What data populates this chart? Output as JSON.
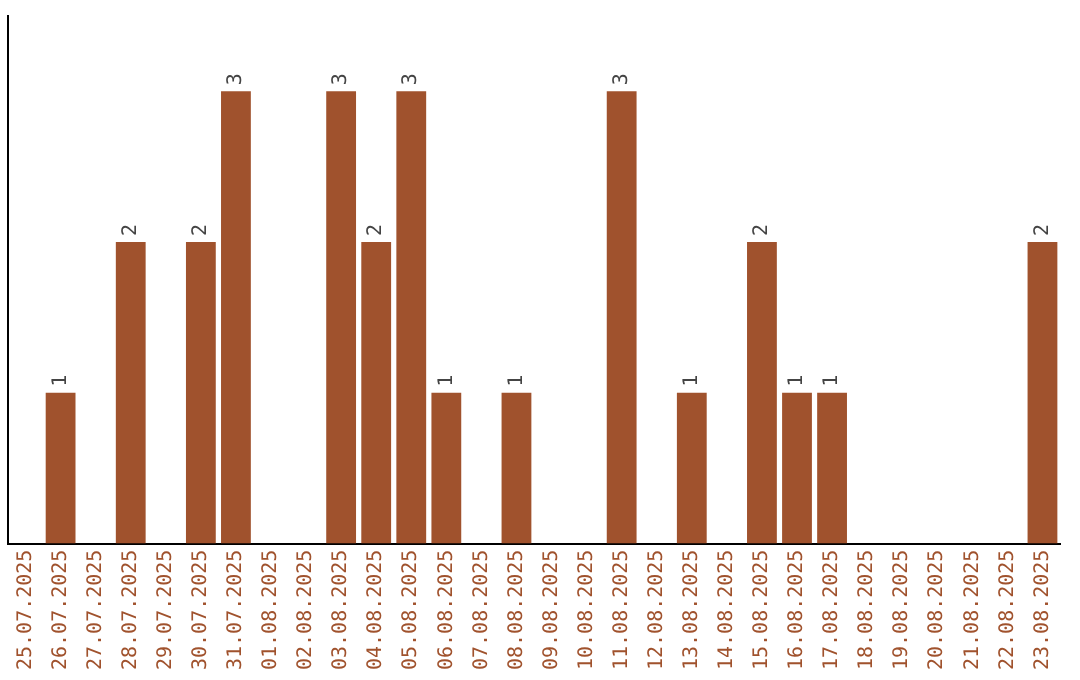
{
  "chart_data": {
    "type": "bar",
    "categories": [
      "25.07.2025",
      "26.07.2025",
      "27.07.2025",
      "28.07.2025",
      "29.07.2025",
      "30.07.2025",
      "31.07.2025",
      "01.08.2025",
      "02.08.2025",
      "03.08.2025",
      "04.08.2025",
      "05.08.2025",
      "06.08.2025",
      "07.08.2025",
      "08.08.2025",
      "09.08.2025",
      "10.08.2025",
      "11.08.2025",
      "12.08.2025",
      "13.08.2025",
      "14.08.2025",
      "15.08.2025",
      "16.08.2025",
      "17.08.2025",
      "18.08.2025",
      "19.08.2025",
      "20.08.2025",
      "21.08.2025",
      "22.08.2025",
      "23.08.2025"
    ],
    "values": [
      0,
      1,
      0,
      2,
      0,
      2,
      3,
      0,
      0,
      3,
      2,
      3,
      1,
      0,
      1,
      0,
      0,
      3,
      0,
      1,
      0,
      2,
      1,
      1,
      0,
      0,
      0,
      0,
      0,
      2
    ],
    "value_labels": [
      null,
      "1",
      null,
      "2",
      null,
      "2",
      "3",
      null,
      null,
      "3",
      "2",
      "3",
      "1",
      null,
      "1",
      null,
      null,
      "3",
      null,
      "1",
      null,
      "2",
      "1",
      "1",
      null,
      null,
      null,
      null,
      null,
      "2"
    ],
    "color": "#a0522d",
    "grid": false,
    "legend": false,
    "tick_labels": "x"
  }
}
